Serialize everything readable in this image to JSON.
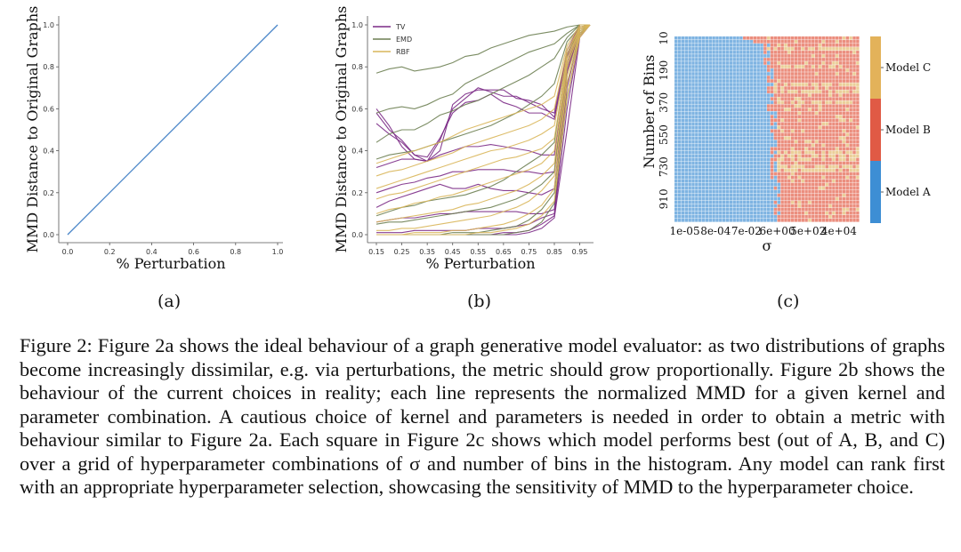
{
  "figure": {
    "panel_labels": [
      "(a)",
      "(b)",
      "(c)"
    ]
  },
  "chart_data": [
    {
      "type": "line",
      "panel": "(a)",
      "xlabel": "% Perturbation",
      "ylabel": "MMD Distance to Original Graphs",
      "xlim": [
        0.0,
        1.0
      ],
      "ylim": [
        0.0,
        1.0
      ],
      "xticks": [
        "0.0",
        "0.2",
        "0.4",
        "0.6",
        "0.8",
        "1.0"
      ],
      "yticks": [
        "0.0",
        "0.2",
        "0.4",
        "0.6",
        "0.8",
        "1.0"
      ],
      "series": [
        {
          "color": "#4a86c8",
          "x": [
            0.0,
            1.0
          ],
          "y": [
            0.0,
            1.0
          ]
        }
      ]
    },
    {
      "type": "line",
      "panel": "(b)",
      "xlabel": "% Perturbation",
      "ylabel": "MMD Distance to Original Graphs",
      "xlim": [
        0.15,
        0.99
      ],
      "ylim": [
        0.0,
        1.0
      ],
      "xticks": [
        "0.15",
        "0.25",
        "0.35",
        "0.45",
        "0.55",
        "0.65",
        "0.75",
        "0.85",
        "0.95"
      ],
      "yticks": [
        "0.0",
        "0.2",
        "0.4",
        "0.6",
        "0.8",
        "1.0"
      ],
      "legend": {
        "position": "top-left",
        "entries": [
          {
            "label": "TV",
            "color": "#7b2a86"
          },
          {
            "label": "EMD",
            "color": "#6d7f52"
          },
          {
            "label": "RBF",
            "color": "#d9b65a"
          }
        ]
      },
      "x": [
        0.15,
        0.2,
        0.25,
        0.3,
        0.35,
        0.4,
        0.45,
        0.5,
        0.55,
        0.6,
        0.65,
        0.7,
        0.75,
        0.8,
        0.85,
        0.9,
        0.95,
        0.99
      ],
      "series": [
        {
          "color": "#7b2a86",
          "values": [
            0.6,
            0.52,
            0.42,
            0.36,
            0.35,
            0.4,
            0.62,
            0.67,
            0.69,
            0.69,
            0.69,
            0.65,
            0.64,
            0.62,
            0.56,
            0.86,
            1.0,
            1.0
          ]
        },
        {
          "color": "#7b2a86",
          "values": [
            0.58,
            0.5,
            0.45,
            0.38,
            0.35,
            0.45,
            0.6,
            0.65,
            0.7,
            0.68,
            0.66,
            0.66,
            0.63,
            0.6,
            0.58,
            0.88,
            1.0,
            1.0
          ]
        },
        {
          "color": "#7b2a86",
          "values": [
            0.53,
            0.48,
            0.44,
            0.38,
            0.37,
            0.46,
            0.58,
            0.63,
            0.64,
            0.67,
            0.63,
            0.61,
            0.58,
            0.58,
            0.55,
            0.85,
            1.0,
            1.0
          ]
        },
        {
          "color": "#7b2a86",
          "values": [
            0.32,
            0.34,
            0.36,
            0.36,
            0.35,
            0.38,
            0.4,
            0.42,
            0.42,
            0.43,
            0.42,
            0.41,
            0.4,
            0.38,
            0.38,
            0.82,
            1.0,
            1.0
          ]
        },
        {
          "color": "#7b2a86",
          "values": [
            0.2,
            0.22,
            0.24,
            0.25,
            0.27,
            0.28,
            0.3,
            0.3,
            0.31,
            0.31,
            0.31,
            0.3,
            0.3,
            0.29,
            0.3,
            0.8,
            0.99,
            1.0
          ]
        },
        {
          "color": "#7b2a86",
          "values": [
            0.13,
            0.16,
            0.18,
            0.2,
            0.22,
            0.24,
            0.22,
            0.22,
            0.24,
            0.22,
            0.21,
            0.21,
            0.2,
            0.19,
            0.22,
            0.78,
            0.98,
            1.0
          ]
        },
        {
          "color": "#7b2a86",
          "values": [
            0.06,
            0.07,
            0.08,
            0.08,
            0.09,
            0.1,
            0.1,
            0.11,
            0.11,
            0.11,
            0.11,
            0.11,
            0.1,
            0.1,
            0.12,
            0.76,
            0.98,
            1.0
          ]
        },
        {
          "color": "#7b2a86",
          "values": [
            0.01,
            0.01,
            0.01,
            0.02,
            0.02,
            0.02,
            0.02,
            0.02,
            0.03,
            0.03,
            0.03,
            0.04,
            0.05,
            0.08,
            0.1,
            0.7,
            0.96,
            1.0
          ]
        },
        {
          "color": "#7b2a86",
          "values": [
            0.0,
            0.0,
            0.0,
            0.0,
            0.0,
            0.0,
            0.0,
            0.0,
            0.0,
            0.0,
            0.01,
            0.01,
            0.02,
            0.05,
            0.09,
            0.6,
            0.95,
            1.0
          ]
        },
        {
          "color": "#7b2a86",
          "values": [
            0.0,
            0.0,
            0.0,
            0.0,
            0.0,
            0.0,
            0.0,
            0.0,
            0.0,
            0.0,
            0.0,
            0.0,
            0.01,
            0.03,
            0.08,
            0.5,
            0.94,
            1.0
          ]
        },
        {
          "color": "#6d7f52",
          "values": [
            0.77,
            0.79,
            0.8,
            0.78,
            0.79,
            0.8,
            0.82,
            0.85,
            0.86,
            0.89,
            0.91,
            0.93,
            0.95,
            0.96,
            0.97,
            0.99,
            1.0,
            1.0
          ]
        },
        {
          "color": "#6d7f52",
          "values": [
            0.58,
            0.6,
            0.61,
            0.6,
            0.62,
            0.65,
            0.67,
            0.72,
            0.75,
            0.78,
            0.81,
            0.84,
            0.87,
            0.89,
            0.91,
            0.96,
            1.0,
            1.0
          ]
        },
        {
          "color": "#6d7f52",
          "values": [
            0.44,
            0.48,
            0.5,
            0.5,
            0.53,
            0.57,
            0.59,
            0.62,
            0.64,
            0.67,
            0.7,
            0.73,
            0.76,
            0.8,
            0.84,
            0.94,
            1.0,
            1.0
          ]
        },
        {
          "color": "#6d7f52",
          "values": [
            0.36,
            0.38,
            0.39,
            0.4,
            0.42,
            0.44,
            0.46,
            0.48,
            0.5,
            0.52,
            0.55,
            0.58,
            0.62,
            0.66,
            0.72,
            0.92,
            0.99,
            1.0
          ]
        },
        {
          "color": "#6d7f52",
          "values": [
            0.09,
            0.11,
            0.13,
            0.14,
            0.16,
            0.17,
            0.18,
            0.19,
            0.21,
            0.23,
            0.26,
            0.3,
            0.34,
            0.38,
            0.44,
            0.86,
            0.98,
            1.0
          ]
        },
        {
          "color": "#6d7f52",
          "values": [
            0.05,
            0.06,
            0.06,
            0.07,
            0.08,
            0.09,
            0.1,
            0.11,
            0.12,
            0.13,
            0.15,
            0.17,
            0.2,
            0.24,
            0.3,
            0.8,
            0.97,
            1.0
          ]
        },
        {
          "color": "#6d7f52",
          "values": [
            0.0,
            0.0,
            0.0,
            0.0,
            0.0,
            0.0,
            0.01,
            0.01,
            0.01,
            0.02,
            0.03,
            0.04,
            0.07,
            0.12,
            0.2,
            0.72,
            0.96,
            1.0
          ]
        },
        {
          "color": "#6d7f52",
          "values": [
            0.0,
            0.0,
            0.0,
            0.0,
            0.0,
            0.0,
            0.0,
            0.0,
            0.0,
            0.0,
            0.0,
            0.01,
            0.02,
            0.06,
            0.15,
            0.65,
            0.95,
            1.0
          ]
        },
        {
          "color": "#d9b65a",
          "values": [
            0.34,
            0.36,
            0.38,
            0.4,
            0.42,
            0.44,
            0.47,
            0.5,
            0.52,
            0.54,
            0.56,
            0.58,
            0.6,
            0.62,
            0.66,
            0.9,
            1.0,
            1.0
          ]
        },
        {
          "color": "#d9b65a",
          "values": [
            0.28,
            0.3,
            0.31,
            0.33,
            0.35,
            0.37,
            0.39,
            0.42,
            0.44,
            0.46,
            0.48,
            0.5,
            0.52,
            0.55,
            0.6,
            0.88,
            0.99,
            1.0
          ]
        },
        {
          "color": "#d9b65a",
          "values": [
            0.22,
            0.24,
            0.26,
            0.28,
            0.3,
            0.32,
            0.34,
            0.36,
            0.38,
            0.4,
            0.41,
            0.43,
            0.45,
            0.48,
            0.52,
            0.86,
            0.99,
            1.0
          ]
        },
        {
          "color": "#d9b65a",
          "values": [
            0.17,
            0.19,
            0.2,
            0.22,
            0.24,
            0.26,
            0.28,
            0.3,
            0.32,
            0.34,
            0.36,
            0.37,
            0.39,
            0.41,
            0.46,
            0.84,
            0.98,
            1.0
          ]
        },
        {
          "color": "#d9b65a",
          "values": [
            0.1,
            0.12,
            0.13,
            0.15,
            0.16,
            0.18,
            0.19,
            0.21,
            0.23,
            0.25,
            0.27,
            0.29,
            0.31,
            0.34,
            0.4,
            0.82,
            0.98,
            1.0
          ]
        },
        {
          "color": "#d9b65a",
          "values": [
            0.06,
            0.07,
            0.08,
            0.09,
            0.1,
            0.11,
            0.12,
            0.14,
            0.15,
            0.17,
            0.19,
            0.21,
            0.24,
            0.28,
            0.34,
            0.8,
            0.97,
            1.0
          ]
        },
        {
          "color": "#d9b65a",
          "values": [
            0.02,
            0.02,
            0.03,
            0.03,
            0.04,
            0.05,
            0.06,
            0.07,
            0.08,
            0.09,
            0.11,
            0.13,
            0.16,
            0.21,
            0.28,
            0.76,
            0.96,
            1.0
          ]
        },
        {
          "color": "#d9b65a",
          "values": [
            0.0,
            0.0,
            0.0,
            0.01,
            0.01,
            0.01,
            0.02,
            0.02,
            0.03,
            0.04,
            0.05,
            0.07,
            0.1,
            0.14,
            0.22,
            0.72,
            0.95,
            1.0
          ]
        },
        {
          "color": "#d9b65a",
          "values": [
            0.0,
            0.0,
            0.0,
            0.0,
            0.0,
            0.0,
            0.0,
            0.0,
            0.01,
            0.01,
            0.02,
            0.03,
            0.05,
            0.09,
            0.16,
            0.66,
            0.94,
            1.0
          ]
        }
      ]
    },
    {
      "type": "heatmap",
      "panel": "(c)",
      "xlabel": "σ",
      "ylabel": "Number of Bins",
      "xticks": [
        "1e-05",
        "8e-04",
        "7e-02",
        "6e+00",
        "5e+02",
        "4e+04"
      ],
      "yticks": [
        "10",
        "190",
        "370",
        "550",
        "730",
        "910"
      ],
      "colorbar": [
        {
          "label": "Model A",
          "color": "#3d8ed4"
        },
        {
          "label": "Model B",
          "color": "#e05a45"
        },
        {
          "label": "Model C",
          "color": "#e3b25a"
        }
      ],
      "cell_colors": {
        "A": "#7fb4e2",
        "B": "#eb8e7e",
        "C": "#ebcf99"
      },
      "summary": "Model A dominates small σ (left, reaching farther right for low bin counts); Model B dominates most large σ; Model C appears in bands mainly in the upper rows at large σ."
    }
  ],
  "caption": {
    "text": "Figure 2: Figure 2a shows the ideal behaviour of a graph generative model evaluator: as two distributions of graphs become increasingly dissimilar, e.g. via perturbations, the metric should grow proportionally. Figure 2b shows the behaviour of the current choices in reality; each line represents the normalized MMD for a given kernel and parameter combination. A cautious choice of kernel and parameters is needed in order to obtain a metric with behaviour similar to Figure 2a. Each square in Figure 2c shows which model performs best (out of A, B, and C) over a grid of hyperparameter combinations of σ and number of bins in the histogram. Any model can rank first with an appropriate hyperparameter selection, showcasing the sensitivity of MMD to the hyperparameter choice."
  }
}
